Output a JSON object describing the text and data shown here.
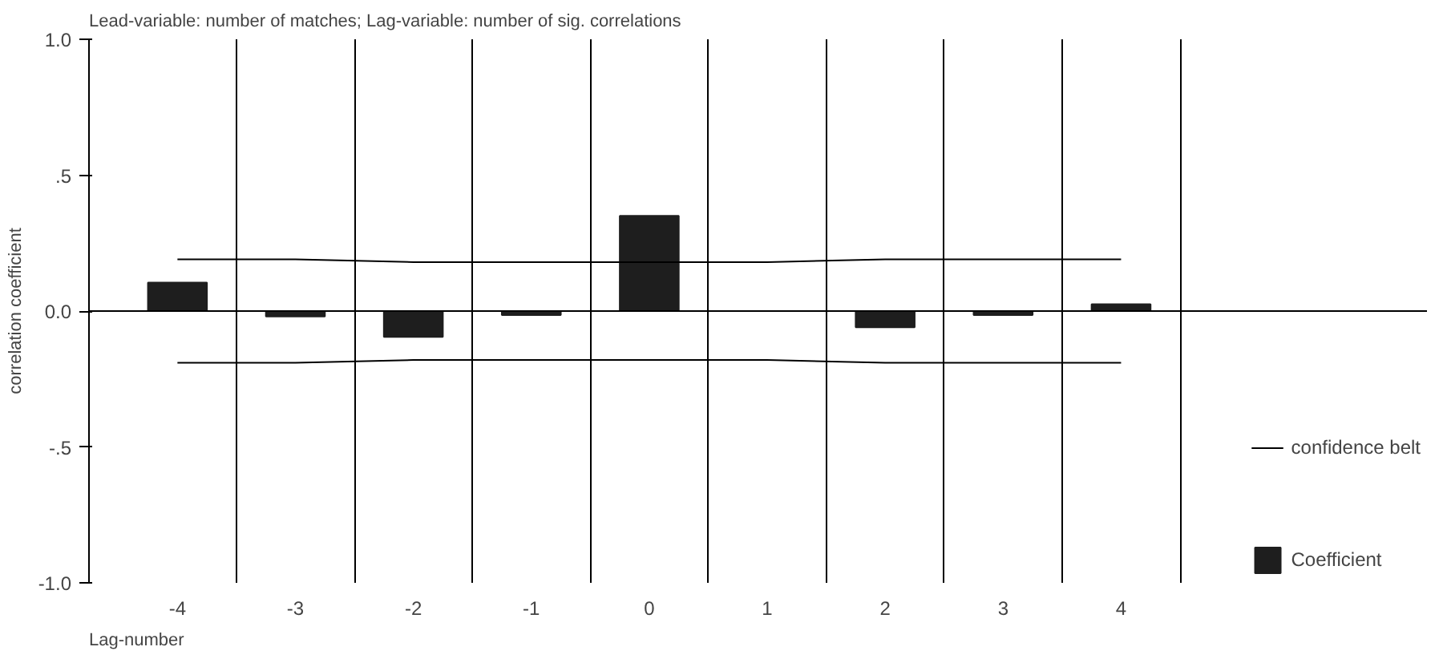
{
  "chart_data": {
    "type": "bar",
    "title": "Lead-variable: number of matches; Lag-variable: number of sig. correlations",
    "xlabel": "Lag-number",
    "ylabel": "correlation coefficient",
    "categories": [
      "-4",
      "-3",
      "-2",
      "-1",
      "0",
      "1",
      "2",
      "3",
      "4"
    ],
    "series": [
      {
        "name": "Coefficient",
        "color": "#1e1e1e",
        "values": [
          0.105,
          -0.02,
          -0.095,
          -0.015,
          0.35,
          0.0,
          -0.06,
          -0.015,
          0.025
        ]
      },
      {
        "name": "confidence belt",
        "type": "line",
        "color": "#000000",
        "values": [
          0.19,
          0.19,
          0.18,
          0.18,
          0.18,
          0.18,
          0.19,
          0.19,
          0.19
        ]
      },
      {
        "type": "line",
        "color": "#000000",
        "values": [
          -0.19,
          -0.19,
          -0.18,
          -0.18,
          -0.18,
          -0.18,
          -0.19,
          -0.19,
          -0.19
        ]
      }
    ],
    "ylim": [
      -1.0,
      1.0
    ],
    "yticks": [
      {
        "value": -1.0,
        "label": "-1.0"
      },
      {
        "value": -0.5,
        "label": "-.5"
      },
      {
        "value": 0.0,
        "label": "0.0"
      },
      {
        "value": 0.5,
        "label": ".5"
      },
      {
        "value": 1.0,
        "label": "1.0"
      }
    ],
    "ref_lines": [
      {
        "axis": "y",
        "value": 0.0,
        "color": "#000000"
      }
    ],
    "grid": "x",
    "legend": "right",
    "marker": "none",
    "line_style": "solid"
  }
}
